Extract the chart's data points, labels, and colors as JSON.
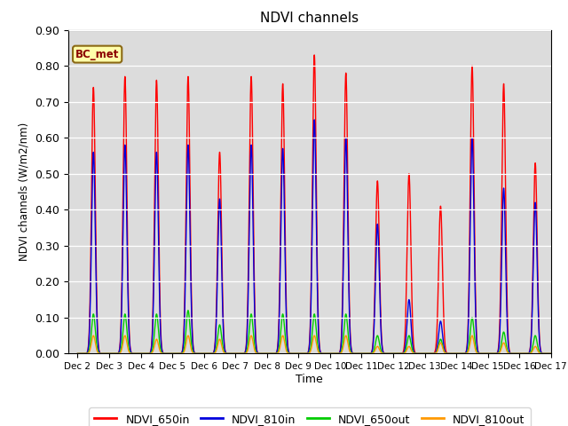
{
  "title": "NDVI channels",
  "ylabel": "NDVI channels (W/m2/nm)",
  "xlabel": "Time",
  "bg_color": "#dcdcdc",
  "legend_label": "BC_met",
  "ylim": [
    0.0,
    0.9
  ],
  "yticks": [
    0.0,
    0.1,
    0.2,
    0.3,
    0.4,
    0.5,
    0.6,
    0.7,
    0.8,
    0.9
  ],
  "xtick_labels": [
    "Dec 2",
    "Dec 3",
    "Dec 4",
    "Dec 5",
    "Dec 6",
    "Dec 7",
    "Dec 8",
    "Dec 9",
    "Dec 10",
    "Dec 11",
    "Dec 12",
    "Dec 13",
    "Dec 14",
    "Dec 15",
    "Dec 16",
    "Dec 17"
  ],
  "colors": {
    "NDVI_650in": "#ff0000",
    "NDVI_810in": "#0000dd",
    "NDVI_650out": "#00cc00",
    "NDVI_810out": "#ff9900"
  },
  "n_days": 15,
  "peaks_650in": [
    0.74,
    0.77,
    0.76,
    0.77,
    0.56,
    0.77,
    0.75,
    0.83,
    0.78,
    0.48,
    0.5,
    0.41,
    0.8,
    0.75,
    0.53
  ],
  "peaks_810in": [
    0.56,
    0.58,
    0.56,
    0.58,
    0.43,
    0.58,
    0.57,
    0.65,
    0.6,
    0.36,
    0.15,
    0.09,
    0.6,
    0.46,
    0.42
  ],
  "peaks_650out": [
    0.11,
    0.11,
    0.11,
    0.12,
    0.08,
    0.11,
    0.11,
    0.11,
    0.11,
    0.05,
    0.05,
    0.04,
    0.1,
    0.06,
    0.05
  ],
  "peaks_810out": [
    0.05,
    0.05,
    0.04,
    0.05,
    0.04,
    0.05,
    0.05,
    0.05,
    0.05,
    0.02,
    0.02,
    0.03,
    0.05,
    0.03,
    0.02
  ],
  "line_width": 1.0,
  "figsize": [
    6.4,
    4.8
  ],
  "dpi": 100
}
